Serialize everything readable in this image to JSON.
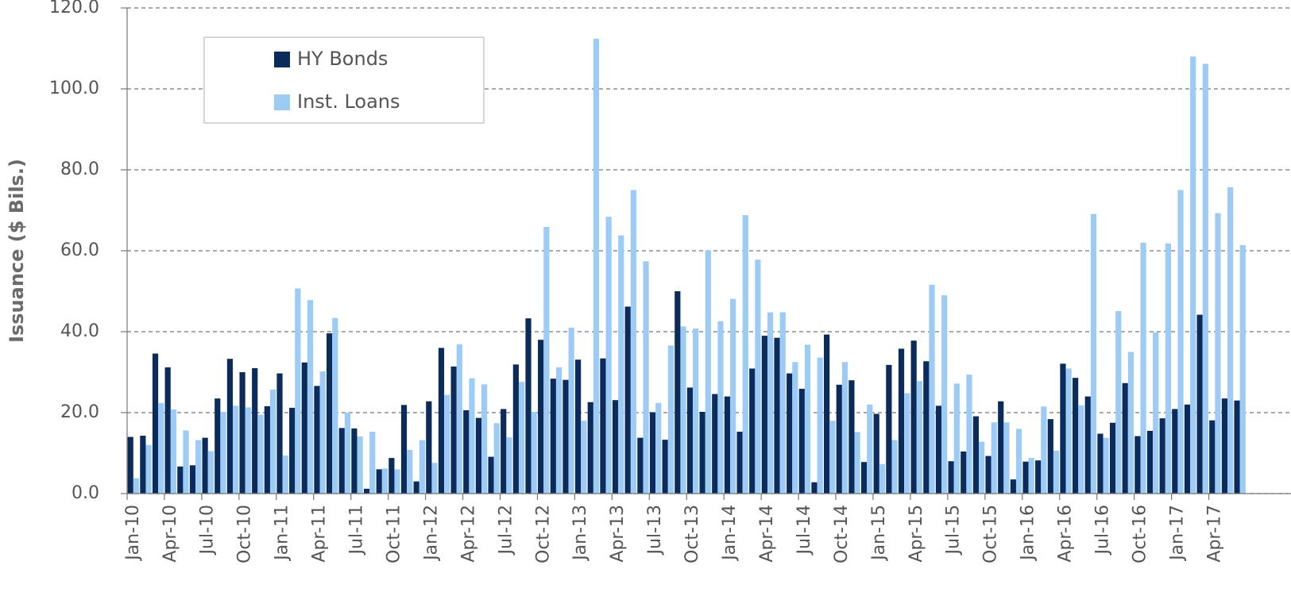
{
  "chart_data": {
    "type": "bar",
    "y_label": "Issuance ($ Bils.)",
    "categories": [
      "Jan-10",
      null,
      null,
      "Apr-10",
      null,
      null,
      "Jul-10",
      null,
      null,
      "Oct-10",
      null,
      null,
      "Jan-11",
      null,
      null,
      "Apr-11",
      null,
      null,
      "Jul-11",
      null,
      null,
      "Oct-11",
      null,
      null,
      "Jan-12",
      null,
      null,
      "Apr-12",
      null,
      null,
      "Jul-12",
      null,
      null,
      "Oct-12",
      null,
      null,
      "Jan-13",
      null,
      null,
      "Apr-13",
      null,
      null,
      "Jul-13",
      null,
      null,
      "Oct-13",
      null,
      null,
      "Jan-14",
      null,
      null,
      "Apr-14",
      null,
      null,
      "Jul-14",
      null,
      null,
      "Oct-14",
      null,
      null,
      "Jan-15",
      null,
      null,
      "Apr-15",
      null,
      null,
      "Jul-15",
      null,
      null,
      "Oct-15",
      null,
      null,
      "Jan-16",
      null,
      null,
      "Apr-16",
      null,
      null,
      "Jul-16",
      null,
      null,
      "Oct-16",
      null,
      null,
      "Jan-17",
      null,
      null,
      "Apr-17",
      null,
      null
    ],
    "series": [
      {
        "name": "HY Bonds",
        "color": "#0b2c5a",
        "values": [
          14,
          14.3,
          34.6,
          31.2,
          6.7,
          7,
          13.8,
          23.5,
          33.3,
          30,
          31,
          21.6,
          29.7,
          21.2,
          32.4,
          26.6,
          39.6,
          16.2,
          16.1,
          1.2,
          6,
          8.8,
          21.9,
          3,
          22.8,
          36,
          31.4,
          20.6,
          18.7,
          9.1,
          20.9,
          31.9,
          43.3,
          38,
          28.4,
          28.1,
          33.1,
          22.6,
          33.4,
          23.1,
          46.2,
          13.8,
          20.1,
          13.3,
          50,
          26.2,
          20.2,
          24.6,
          24,
          15.3,
          30.9,
          39,
          38.5,
          29.7,
          25.9,
          2.8,
          39.3,
          26.9,
          28,
          7.8,
          19.7,
          31.8,
          35.8,
          37.8,
          32.7,
          21.7,
          8,
          10.4,
          19.1,
          9.3,
          22.8,
          3.5,
          7.9,
          8.2,
          18.4,
          32.1,
          28.6,
          24,
          14.8,
          17.5,
          27.3,
          14.2,
          15.5,
          18.6,
          20.9,
          22,
          44.2,
          18.1,
          23.5,
          23
        ]
      },
      {
        "name": "Inst. Loans",
        "color": "#9ccbf6",
        "values": [
          3.8,
          12,
          22.4,
          20.8,
          15.6,
          13.2,
          10.5,
          20.2,
          21.7,
          21.3,
          19.5,
          25.7,
          9.4,
          50.7,
          47.8,
          30.2,
          43.4,
          20,
          14.1,
          15.3,
          6.2,
          6,
          10.8,
          13.2,
          7.6,
          24.4,
          36.9,
          28.5,
          27,
          17.4,
          13.9,
          27.6,
          20.2,
          65.9,
          31.2,
          41,
          18,
          112.4,
          68.4,
          63.8,
          75,
          57.4,
          22.4,
          36.6,
          41.3,
          40.8,
          60.1,
          42.6,
          48.1,
          68.8,
          57.8,
          44.8,
          44.8,
          32.5,
          36.8,
          33.6,
          18,
          32.5,
          15.2,
          22,
          7.3,
          13.2,
          24.8,
          27.8,
          51.6,
          49,
          27.2,
          29.4,
          12.8,
          17.6,
          17.6,
          16,
          8.8,
          21.5,
          10.6,
          30.9,
          21.8,
          69.1,
          13.8,
          45.1,
          35,
          62,
          39.8,
          61.8,
          75,
          108,
          106.2,
          69.3,
          75.7,
          61.4
        ]
      }
    ],
    "ylim": [
      0,
      120
    ],
    "yticks": [
      {
        "value": 0,
        "label": "0.0"
      },
      {
        "value": 20,
        "label": "20.0"
      },
      {
        "value": 40,
        "label": "40.0"
      },
      {
        "value": 60,
        "label": "60.0"
      },
      {
        "value": 80,
        "label": "80.0"
      },
      {
        "value": 100,
        "label": "100.0"
      },
      {
        "value": 120,
        "label": "120.0"
      }
    ],
    "grid": true,
    "legend": "upper left"
  }
}
